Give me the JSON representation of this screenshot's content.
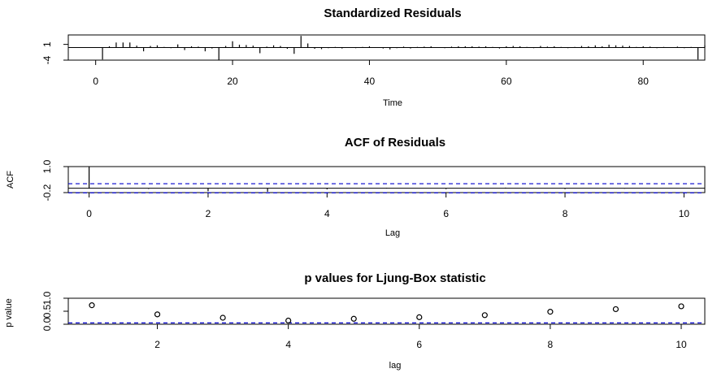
{
  "colors": {
    "line": "#000000",
    "reference": "#0000CD",
    "background": "#FFFFFF"
  },
  "chart_data": [
    {
      "type": "bar",
      "title": "Standardized Residuals",
      "xlabel": "Time",
      "ylabel": "",
      "xlim": [
        -4,
        89
      ],
      "ylim": [
        -4,
        4
      ],
      "x_ticks": [
        "0",
        "20",
        "40",
        "60",
        "80"
      ],
      "y_ticks": [
        "-4",
        "1"
      ],
      "zero_line": true,
      "grid": false,
      "x": [
        1,
        2,
        3,
        4,
        5,
        6,
        7,
        8,
        9,
        10,
        11,
        12,
        13,
        14,
        15,
        16,
        17,
        18,
        19,
        20,
        21,
        22,
        23,
        24,
        25,
        26,
        27,
        28,
        29,
        30,
        31,
        32,
        33,
        34,
        35,
        36,
        37,
        38,
        39,
        40,
        41,
        42,
        43,
        44,
        45,
        46,
        47,
        48,
        49,
        50,
        51,
        52,
        53,
        54,
        55,
        56,
        57,
        58,
        59,
        60,
        61,
        62,
        63,
        64,
        65,
        66,
        67,
        68,
        69,
        70,
        71,
        72,
        73,
        74,
        75,
        76,
        77,
        78,
        79,
        80,
        81,
        82,
        83,
        84,
        85,
        86,
        87,
        88,
        89
      ],
      "values": [
        -3.8,
        0.4,
        1.6,
        1.6,
        1.6,
        0.6,
        -1.2,
        0.5,
        0.7,
        0.2,
        -0.2,
        1.0,
        -0.8,
        0.4,
        0.3,
        -1.2,
        -0.3,
        -3.9,
        0.5,
        2.0,
        0.9,
        0.8,
        0.6,
        -1.8,
        0.3,
        0.7,
        0.5,
        -0.4,
        -2.0,
        3.7,
        1.3,
        -0.4,
        -0.5,
        -0.2,
        0.2,
        -0.3,
        0.1,
        -0.2,
        0.2,
        0.4,
        -0.1,
        -0.3,
        -0.6,
        -0.2,
        0.3,
        -0.3,
        0.2,
        0.3,
        0.4,
        0.1,
        -0.2,
        0.3,
        0.4,
        0.4,
        0.4,
        0.3,
        0.4,
        0.2,
        -0.3,
        0.4,
        0.5,
        0.4,
        0.2,
        -0.2,
        0.5,
        0.3,
        0.4,
        0.2,
        -0.2,
        0.2,
        0.5,
        0.4,
        0.7,
        0.4,
        0.9,
        0.7,
        0.6,
        0.5,
        0.2,
        0.4,
        0.3,
        -0.2,
        0.2,
        0.1,
        0.3,
        -0.2,
        0.2,
        -3.8,
        0.7
      ]
    },
    {
      "type": "bar",
      "title": "ACF of Residuals",
      "xlabel": "Lag",
      "ylabel": "ACF",
      "xlim": [
        -0.35,
        10.35
      ],
      "ylim": [
        -0.2,
        1.0
      ],
      "x_ticks": [
        "0",
        "2",
        "4",
        "6",
        "8",
        "10"
      ],
      "y_ticks": [
        "-0.2",
        "1.0"
      ],
      "x": [
        0,
        1,
        2,
        3,
        4,
        5,
        6,
        7,
        8,
        9,
        10
      ],
      "values": [
        1.0,
        -0.03,
        -0.14,
        -0.16,
        -0.05,
        0.02,
        -0.04,
        0.03,
        -0.04,
        -0.02,
        0.01
      ],
      "confidence_bounds": [
        -0.21,
        0.21
      ],
      "grid": false
    },
    {
      "type": "scatter",
      "title": "p values for Ljung-Box statistic",
      "xlabel": "lag",
      "ylabel": "p value",
      "xlim": [
        0.64,
        10.36
      ],
      "ylim": [
        0.0,
        1.0
      ],
      "x_ticks": [
        "2",
        "4",
        "6",
        "8",
        "10"
      ],
      "y_ticks": [
        "0.0",
        "0.5",
        "1.0"
      ],
      "x": [
        1,
        2,
        3,
        4,
        5,
        6,
        7,
        8,
        9,
        10
      ],
      "values": [
        0.73,
        0.38,
        0.25,
        0.14,
        0.21,
        0.27,
        0.35,
        0.48,
        0.58,
        0.69
      ],
      "reference_line": 0.05,
      "grid": false
    }
  ]
}
